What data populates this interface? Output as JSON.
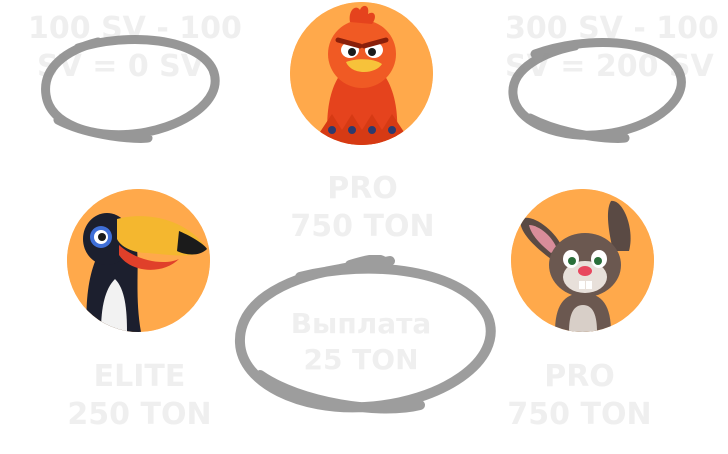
{
  "top_left": {
    "line1": "100 SV - 100",
    "line2": "SV = 0 SV"
  },
  "top_right": {
    "line1": "300 SV - 100",
    "line2": "SV = 200 SV"
  },
  "center_top_label": {
    "line1": "PRO",
    "line2": "750 TON"
  },
  "payout": {
    "line1": "Выплата",
    "line2": "25 TON"
  },
  "left_label": {
    "line1": "ELITE",
    "line2": "250 TON"
  },
  "right_label": {
    "line1": "PRO",
    "line2": "750 TON"
  },
  "colors": {
    "avatar_bg": "#ffa94b",
    "ghost_text": "#efefef",
    "scribble": "#8c8c8c"
  },
  "avatars": {
    "top": "red-bird-character",
    "left": "toucan-character",
    "right": "bunny-character"
  }
}
